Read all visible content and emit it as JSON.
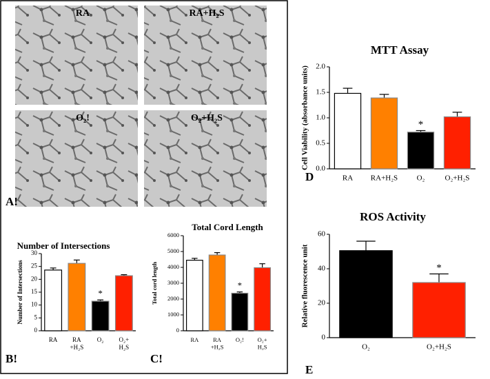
{
  "images": [
    "RA",
    "RA+H₂S",
    "O₂!",
    "O₂+H₂S"
  ],
  "panel_labels": [
    "A!",
    "B!",
    "C!",
    "D",
    "E"
  ],
  "chart_data": [
    {
      "type": "bar",
      "title": "Number of Intersections",
      "y_label": "Number of Intersections",
      "categories": [
        [
          "RA"
        ],
        [
          "RA",
          "+H₂S"
        ],
        [
          "O₂"
        ],
        [
          "O₂+",
          "H₂S"
        ]
      ],
      "values": [
        23.6,
        26.2,
        11.5,
        21.4
      ],
      "errors": [
        0.8,
        1.3,
        0.5,
        0.4
      ],
      "star_labels": [
        null,
        null,
        "*",
        null
      ],
      "colors": [
        "#ffffff",
        "#ff8000",
        "#000000",
        "#ff2000"
      ],
      "ylim": [
        0,
        30
      ],
      "yticks": [
        0,
        5,
        10,
        15,
        20,
        25,
        30
      ]
    },
    {
      "type": "bar",
      "title": "Total Cord Length",
      "y_label": "Total cord length",
      "categories": [
        [
          "RA"
        ],
        [
          "RA",
          "+H₂S"
        ],
        [
          "O₂!"
        ],
        [
          "O₂+",
          "H₂S"
        ]
      ],
      "values": [
        4450,
        4780,
        2370,
        3980
      ],
      "errors": [
        120,
        150,
        80,
        250
      ],
      "star_labels": [
        null,
        null,
        "*",
        null
      ],
      "colors": [
        "#ffffff",
        "#ff8000",
        "#000000",
        "#ff2000"
      ],
      "ylim": [
        0,
        6000
      ],
      "yticks": [
        0,
        1000,
        2000,
        3000,
        4000,
        5000,
        6000
      ]
    },
    {
      "type": "bar",
      "title": "MTT Assay",
      "y_label": "Cell Viability (absorbance units)",
      "categories": [
        [
          "RA"
        ],
        [
          "RA+H₂S"
        ],
        [
          "O₂"
        ],
        [
          "O₂+H₂S"
        ]
      ],
      "values": [
        1.48,
        1.39,
        0.72,
        1.02
      ],
      "errors": [
        0.1,
        0.07,
        0.03,
        0.09
      ],
      "star_labels": [
        null,
        null,
        "*",
        null
      ],
      "colors": [
        "#ffffff",
        "#ff8000",
        "#000000",
        "#ff2000"
      ],
      "ylim": [
        0,
        2
      ],
      "yticks": [
        {
          "value": 0,
          "label": "0.0"
        },
        {
          "value": 0.5,
          "label": "0.5"
        },
        {
          "value": 1,
          "label": "1.0"
        },
        {
          "value": 1.5,
          "label": "1.5"
        },
        {
          "value": 2,
          "label": "2.0"
        }
      ]
    },
    {
      "type": "bar",
      "title": "ROS Activity",
      "y_label": "Relative fluorescence unit",
      "categories": [
        [
          "O₂"
        ],
        [
          "O₂+H₂S"
        ]
      ],
      "values": [
        50.5,
        32
      ],
      "errors": [
        5.5,
        5
      ],
      "star_labels": [
        null,
        "*"
      ],
      "colors": [
        "#000000",
        "#ff2000"
      ],
      "ylim": [
        0,
        60
      ],
      "yticks": [
        0,
        20,
        40,
        60
      ]
    }
  ]
}
